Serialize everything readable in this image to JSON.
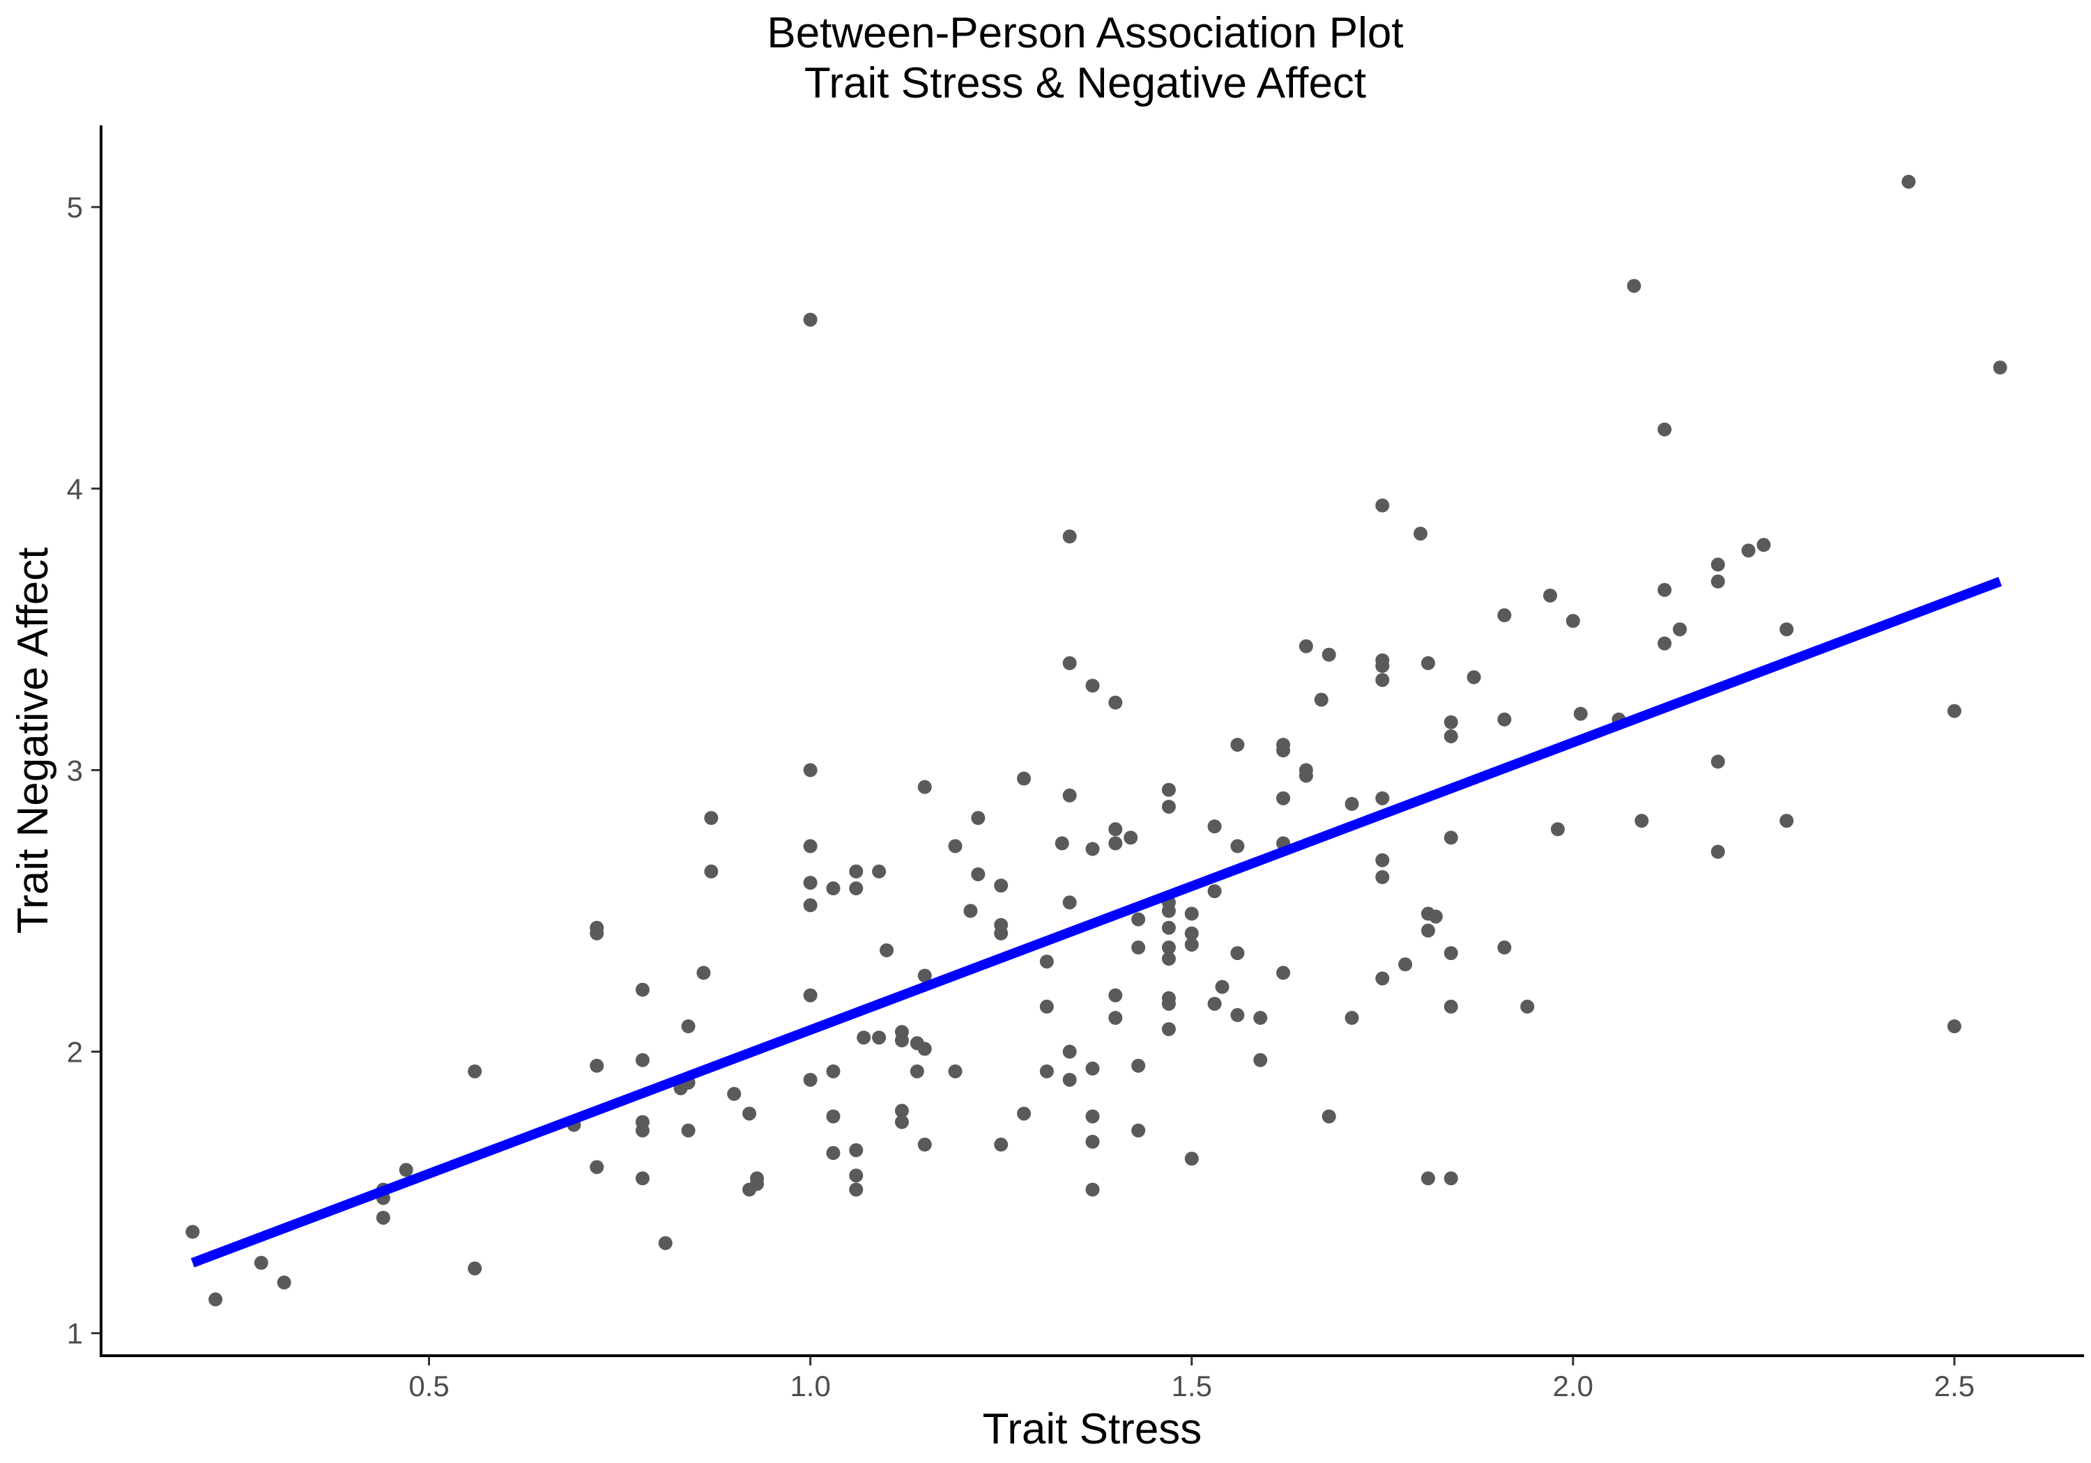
{
  "chart_data": {
    "type": "scatter",
    "title": "Between-Person Association Plot",
    "subtitle": "Trait Stress & Negative Affect",
    "xlabel": "Trait Stress",
    "ylabel": "Trait Negative Affect",
    "xlim": [
      0.07,
      2.67
    ],
    "ylim": [
      0.92,
      5.29
    ],
    "x_ticks": [
      0.5,
      1.0,
      1.5,
      2.0,
      2.5
    ],
    "x_tick_labels": [
      "0.5",
      "1.0",
      "1.5",
      "2.0",
      "2.5"
    ],
    "y_ticks": [
      1,
      2,
      3,
      4,
      5
    ],
    "y_tick_labels": [
      "1",
      "2",
      "3",
      "4",
      "5"
    ],
    "grid": false,
    "legend": "none",
    "point_color": "#5a5a5a",
    "fit_color": "#0000ff",
    "fit_line": {
      "x": [
        0.19,
        2.56
      ],
      "y": [
        1.25,
        3.67
      ]
    },
    "points": [
      [
        0.19,
        1.36
      ],
      [
        0.22,
        1.12
      ],
      [
        0.28,
        1.25
      ],
      [
        0.31,
        1.18
      ],
      [
        0.44,
        1.51
      ],
      [
        0.44,
        1.48
      ],
      [
        0.44,
        1.41
      ],
      [
        0.47,
        1.58
      ],
      [
        0.56,
        1.93
      ],
      [
        0.56,
        1.23
      ],
      [
        0.69,
        1.74
      ],
      [
        0.72,
        2.44
      ],
      [
        0.72,
        2.42
      ],
      [
        0.72,
        1.95
      ],
      [
        0.72,
        1.59
      ],
      [
        0.78,
        2.22
      ],
      [
        0.78,
        1.97
      ],
      [
        0.78,
        1.75
      ],
      [
        0.78,
        1.72
      ],
      [
        0.78,
        1.55
      ],
      [
        0.81,
        1.32
      ],
      [
        0.83,
        1.87
      ],
      [
        0.84,
        1.89
      ],
      [
        0.84,
        2.09
      ],
      [
        0.84,
        1.72
      ],
      [
        0.86,
        2.28
      ],
      [
        0.87,
        2.83
      ],
      [
        0.87,
        2.64
      ],
      [
        0.9,
        1.85
      ],
      [
        0.92,
        1.78
      ],
      [
        0.92,
        1.51
      ],
      [
        0.93,
        1.55
      ],
      [
        0.93,
        1.53
      ],
      [
        1.0,
        4.6
      ],
      [
        1.0,
        3.0
      ],
      [
        1.0,
        2.73
      ],
      [
        1.0,
        2.6
      ],
      [
        1.0,
        2.52
      ],
      [
        1.0,
        2.2
      ],
      [
        1.0,
        1.9
      ],
      [
        1.03,
        2.58
      ],
      [
        1.03,
        1.93
      ],
      [
        1.03,
        1.77
      ],
      [
        1.03,
        1.64
      ],
      [
        1.06,
        2.64
      ],
      [
        1.06,
        2.58
      ],
      [
        1.06,
        1.65
      ],
      [
        1.06,
        1.56
      ],
      [
        1.06,
        1.51
      ],
      [
        1.07,
        2.05
      ],
      [
        1.09,
        2.64
      ],
      [
        1.09,
        2.05
      ],
      [
        1.1,
        2.36
      ],
      [
        1.12,
        2.07
      ],
      [
        1.12,
        2.04
      ],
      [
        1.12,
        1.79
      ],
      [
        1.12,
        1.75
      ],
      [
        1.14,
        1.93
      ],
      [
        1.14,
        2.03
      ],
      [
        1.15,
        2.94
      ],
      [
        1.15,
        2.27
      ],
      [
        1.15,
        2.01
      ],
      [
        1.15,
        1.67
      ],
      [
        1.19,
        2.73
      ],
      [
        1.19,
        1.93
      ],
      [
        1.21,
        2.5
      ],
      [
        1.22,
        2.83
      ],
      [
        1.22,
        2.63
      ],
      [
        1.25,
        2.59
      ],
      [
        1.25,
        2.45
      ],
      [
        1.25,
        2.42
      ],
      [
        1.25,
        1.67
      ],
      [
        1.28,
        2.97
      ],
      [
        1.28,
        1.78
      ],
      [
        1.31,
        2.32
      ],
      [
        1.31,
        2.16
      ],
      [
        1.31,
        1.93
      ],
      [
        1.33,
        2.74
      ],
      [
        1.34,
        3.83
      ],
      [
        1.34,
        3.38
      ],
      [
        1.34,
        2.91
      ],
      [
        1.34,
        2.53
      ],
      [
        1.34,
        2.0
      ],
      [
        1.34,
        1.9
      ],
      [
        1.37,
        3.3
      ],
      [
        1.37,
        2.72
      ],
      [
        1.37,
        1.94
      ],
      [
        1.37,
        1.77
      ],
      [
        1.37,
        1.68
      ],
      [
        1.37,
        1.51
      ],
      [
        1.4,
        3.24
      ],
      [
        1.4,
        2.79
      ],
      [
        1.4,
        2.74
      ],
      [
        1.4,
        2.2
      ],
      [
        1.4,
        2.12
      ],
      [
        1.42,
        2.76
      ],
      [
        1.43,
        2.47
      ],
      [
        1.43,
        2.37
      ],
      [
        1.43,
        1.95
      ],
      [
        1.43,
        1.72
      ],
      [
        1.47,
        2.93
      ],
      [
        1.47,
        2.87
      ],
      [
        1.47,
        2.53
      ],
      [
        1.47,
        2.5
      ],
      [
        1.47,
        2.44
      ],
      [
        1.47,
        2.37
      ],
      [
        1.47,
        2.33
      ],
      [
        1.47,
        2.19
      ],
      [
        1.47,
        2.17
      ],
      [
        1.47,
        2.08
      ],
      [
        1.5,
        2.49
      ],
      [
        1.5,
        2.42
      ],
      [
        1.5,
        2.38
      ],
      [
        1.5,
        1.62
      ],
      [
        1.53,
        2.8
      ],
      [
        1.53,
        2.57
      ],
      [
        1.53,
        2.17
      ],
      [
        1.54,
        2.23
      ],
      [
        1.56,
        3.09
      ],
      [
        1.56,
        2.73
      ],
      [
        1.56,
        2.35
      ],
      [
        1.56,
        2.13
      ],
      [
        1.59,
        2.12
      ],
      [
        1.59,
        1.97
      ],
      [
        1.62,
        3.09
      ],
      [
        1.62,
        3.07
      ],
      [
        1.62,
        2.9
      ],
      [
        1.62,
        2.74
      ],
      [
        1.62,
        2.28
      ],
      [
        1.65,
        3.44
      ],
      [
        1.65,
        3.0
      ],
      [
        1.65,
        2.98
      ],
      [
        1.67,
        3.25
      ],
      [
        1.68,
        3.41
      ],
      [
        1.68,
        1.77
      ],
      [
        1.71,
        2.88
      ],
      [
        1.71,
        2.12
      ],
      [
        1.75,
        3.94
      ],
      [
        1.75,
        3.39
      ],
      [
        1.75,
        3.37
      ],
      [
        1.75,
        3.32
      ],
      [
        1.75,
        2.9
      ],
      [
        1.75,
        2.68
      ],
      [
        1.75,
        2.62
      ],
      [
        1.75,
        2.26
      ],
      [
        1.78,
        2.31
      ],
      [
        1.8,
        3.84
      ],
      [
        1.81,
        3.38
      ],
      [
        1.81,
        2.49
      ],
      [
        1.81,
        2.43
      ],
      [
        1.81,
        1.55
      ],
      [
        1.82,
        2.48
      ],
      [
        1.84,
        3.17
      ],
      [
        1.84,
        3.12
      ],
      [
        1.84,
        2.76
      ],
      [
        1.84,
        2.35
      ],
      [
        1.84,
        2.16
      ],
      [
        1.84,
        1.55
      ],
      [
        1.87,
        3.33
      ],
      [
        1.91,
        3.55
      ],
      [
        1.91,
        3.18
      ],
      [
        1.91,
        2.37
      ],
      [
        1.94,
        2.16
      ],
      [
        1.97,
        3.62
      ],
      [
        1.98,
        2.79
      ],
      [
        2.0,
        3.53
      ],
      [
        2.01,
        3.2
      ],
      [
        2.06,
        3.18
      ],
      [
        2.08,
        4.72
      ],
      [
        2.09,
        2.82
      ],
      [
        2.12,
        4.21
      ],
      [
        2.12,
        3.64
      ],
      [
        2.12,
        3.45
      ],
      [
        2.14,
        3.5
      ],
      [
        2.19,
        3.73
      ],
      [
        2.19,
        3.67
      ],
      [
        2.19,
        3.03
      ],
      [
        2.19,
        2.71
      ],
      [
        2.23,
        3.78
      ],
      [
        2.25,
        3.8
      ],
      [
        2.28,
        3.5
      ],
      [
        2.28,
        2.82
      ],
      [
        2.44,
        5.09
      ],
      [
        2.5,
        3.21
      ],
      [
        2.5,
        2.09
      ],
      [
        2.56,
        4.43
      ]
    ]
  }
}
